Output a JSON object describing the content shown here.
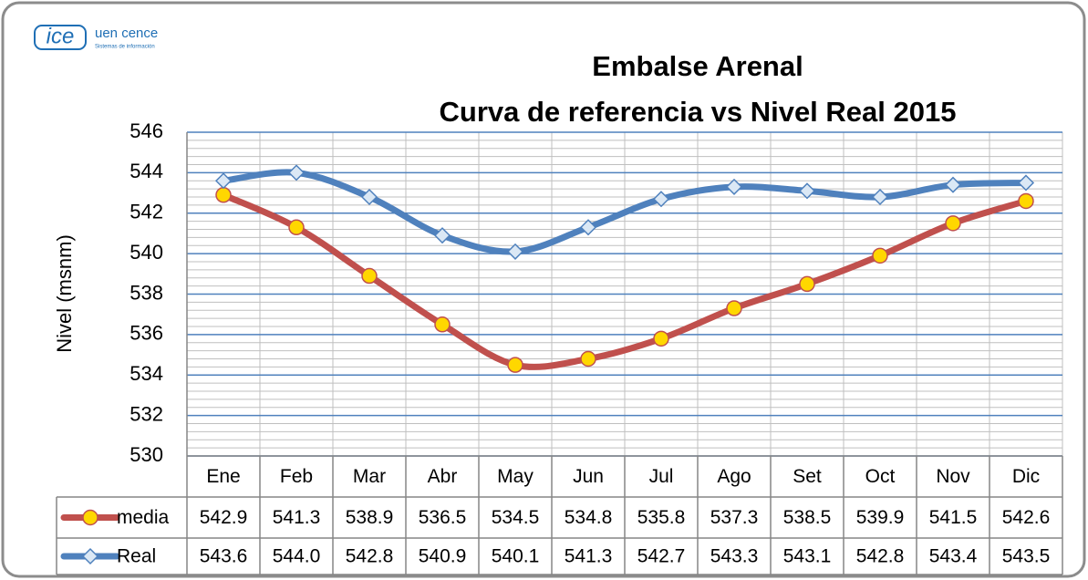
{
  "logo": {
    "mark": "ice",
    "name": "uen cence",
    "subtitle": "Sistemas de información"
  },
  "chart_data": {
    "type": "line",
    "title": [
      "Embalse Arenal",
      "Curva de referencia vs Nivel Real 2015"
    ],
    "y_label": "Nivel (msnm)",
    "categories": [
      "Ene",
      "Feb",
      "Mar",
      "Abr",
      "May",
      "Jun",
      "Jul",
      "Ago",
      "Set",
      "Oct",
      "Nov",
      "Dic"
    ],
    "series": [
      {
        "name": "media",
        "color": "#c0504d",
        "marker": "circle",
        "marker_color": "#ffd700",
        "values": [
          542.9,
          541.3,
          538.9,
          536.5,
          534.5,
          534.8,
          535.8,
          537.3,
          538.5,
          539.9,
          541.5,
          542.6
        ],
        "value_labels": [
          "542.9",
          "541.3",
          "538.9",
          "536.5",
          "534.5",
          "534.8",
          "535.8",
          "537.3",
          "538.5",
          "539.9",
          "541.5",
          "542.6"
        ]
      },
      {
        "name": "Real",
        "color": "#4f81bd",
        "marker": "diamond",
        "marker_color": "#dbe8f5",
        "values": [
          543.6,
          544.0,
          542.8,
          540.9,
          540.1,
          541.3,
          542.7,
          543.3,
          543.1,
          542.8,
          543.4,
          543.5
        ],
        "value_labels": [
          "543.6",
          "544.0",
          "542.8",
          "540.9",
          "540.1",
          "541.3",
          "542.7",
          "543.3",
          "543.1",
          "542.8",
          "543.4",
          "543.5"
        ]
      }
    ],
    "ylim": [
      530,
      546
    ],
    "yticks": [
      530,
      532,
      534,
      536,
      538,
      540,
      542,
      544,
      546
    ],
    "grid": true,
    "minor_grid": true,
    "data_table": true
  }
}
